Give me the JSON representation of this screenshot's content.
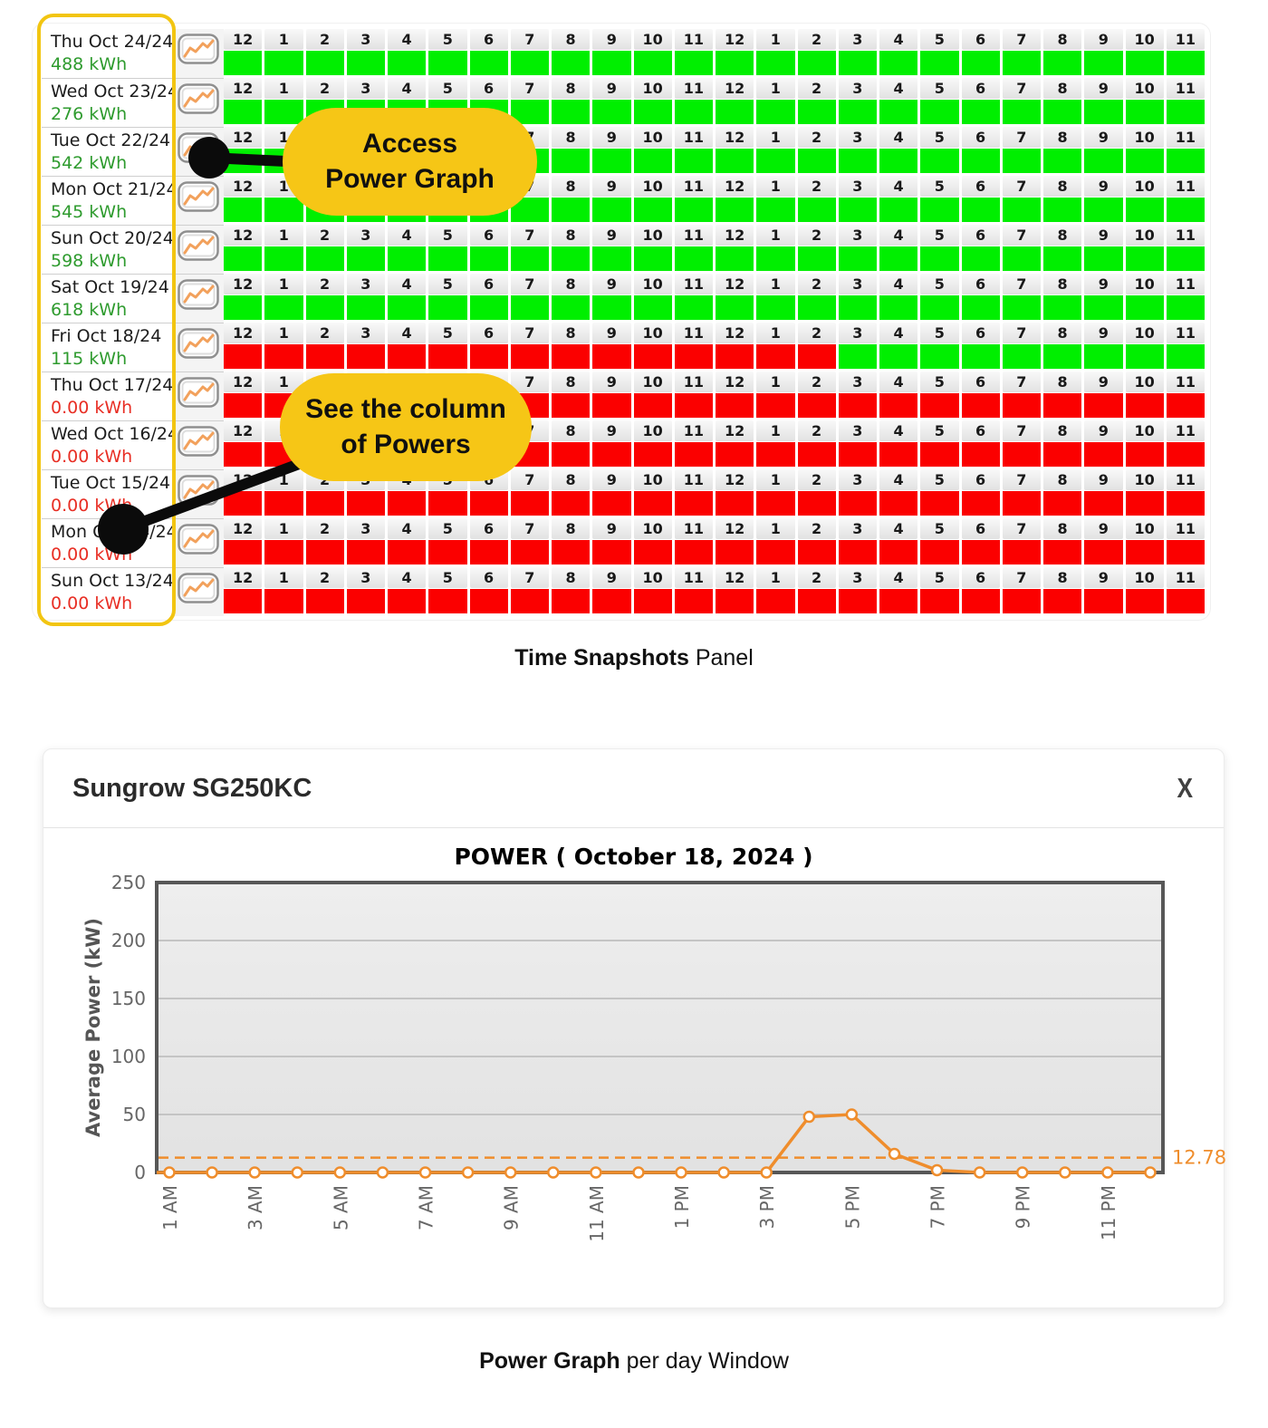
{
  "colors": {
    "cell_green": "#00ef00",
    "cell_red": "#fb0000",
    "energy_ok": "#2e9b2e",
    "energy_zero": "#e82e24",
    "callout_yellow": "#f6c616",
    "highlight_yellow": "#f2c511",
    "line_orange": "#ef8d2c"
  },
  "snapshots": {
    "hours": [
      "12",
      "1",
      "2",
      "3",
      "4",
      "5",
      "6",
      "7",
      "8",
      "9",
      "10",
      "11",
      "12",
      "1",
      "2",
      "3",
      "4",
      "5",
      "6",
      "7",
      "8",
      "9",
      "10",
      "11"
    ],
    "rows": [
      {
        "date": "Thu Oct 24/24",
        "energy": "488 kWh",
        "energy_state": "ok",
        "cells": "GGGGGGGGGGGGGGGGGGGGGGGG"
      },
      {
        "date": "Wed Oct 23/24",
        "energy": "276 kWh",
        "energy_state": "ok",
        "cells": "GGGGGGGGGGGGGGGGGGGGGGGG"
      },
      {
        "date": "Tue Oct 22/24",
        "energy": "542 kWh",
        "energy_state": "ok",
        "cells": "GGGGGGGGGGGGGGGGGGGGGGGG"
      },
      {
        "date": "Mon Oct 21/24",
        "energy": "545 kWh",
        "energy_state": "ok",
        "cells": "GGGGGGGGGGGGGGGGGGGGGGGG"
      },
      {
        "date": "Sun Oct 20/24",
        "energy": "598 kWh",
        "energy_state": "ok",
        "cells": "GGGGGGGGGGGGGGGGGGGGGGGG"
      },
      {
        "date": "Sat Oct 19/24",
        "energy": "618 kWh",
        "energy_state": "ok",
        "cells": "GGGGGGGGGGGGGGGGGGGGGGGG"
      },
      {
        "date": "Fri Oct 18/24",
        "energy": "115 kWh",
        "energy_state": "ok",
        "cells": "RRRRRRRRRRRRRRRGGGGGGGGG"
      },
      {
        "date": "Thu Oct 17/24",
        "energy": "0.00 kWh",
        "energy_state": "zero",
        "cells": "RRRRRRRRRRRRRRRRRRRRRRRR"
      },
      {
        "date": "Wed Oct 16/24",
        "energy": "0.00 kWh",
        "energy_state": "zero",
        "cells": "RRRRRRRRRRRRRRRRRRRRRRRR"
      },
      {
        "date": "Tue Oct 15/24",
        "energy": "0.00 kWh",
        "energy_state": "zero",
        "cells": "RRRRRRRRRRRRRRRRRRRRRRRR"
      },
      {
        "date": "Mon Oct 14/24",
        "energy": "0.00 kWh",
        "energy_state": "zero",
        "cells": "RRRRRRRRRRRRRRRRRRRRRRRR"
      },
      {
        "date": "Sun Oct 13/24",
        "energy": "0.00 kWh",
        "energy_state": "zero",
        "cells": "RRRRRRRRRRRRRRRRRRRRRRRR"
      }
    ]
  },
  "callouts": [
    {
      "lines": [
        "Access",
        "Power Graph"
      ]
    },
    {
      "lines": [
        "See the column",
        "of Powers"
      ]
    }
  ],
  "captions": {
    "top_bold": "Time Snapshots",
    "top_rest": " Panel",
    "bottom_bold": "Power Graph",
    "bottom_rest": " per day Window"
  },
  "window": {
    "title": "Sungrow SG250KC",
    "close_label": "X"
  },
  "chart_data": {
    "type": "line",
    "title": "POWER ( October 18, 2024 )",
    "xlabel": "",
    "ylabel": "Average Power (kW)",
    "ylim": [
      0,
      250
    ],
    "yticks": [
      0,
      50,
      100,
      150,
      200,
      250
    ],
    "grid": true,
    "legend": false,
    "x": [
      "1 AM",
      "2 AM",
      "3 AM",
      "4 AM",
      "5 AM",
      "6 AM",
      "7 AM",
      "8 AM",
      "9 AM",
      "10 AM",
      "11 AM",
      "12 PM",
      "1 PM",
      "2 PM",
      "3 PM",
      "4 PM",
      "5 PM",
      "6 PM",
      "7 PM",
      "8 PM",
      "9 PM",
      "10 PM",
      "11 PM",
      "12 AM"
    ],
    "x_labels_shown": [
      "1 AM",
      "3 AM",
      "5 AM",
      "7 AM",
      "9 AM",
      "11 AM",
      "1 PM",
      "3 PM",
      "5 PM",
      "7 PM",
      "9 PM",
      "11 PM"
    ],
    "series": [
      {
        "name": "Average Power",
        "values": [
          0,
          0,
          0,
          0,
          0,
          0,
          0,
          0,
          0,
          0,
          0,
          0,
          0,
          0,
          0,
          48,
          50,
          16,
          2,
          0,
          0,
          0,
          0,
          0
        ]
      }
    ],
    "avg_line": {
      "value": 12.78,
      "label": "12.78"
    }
  }
}
